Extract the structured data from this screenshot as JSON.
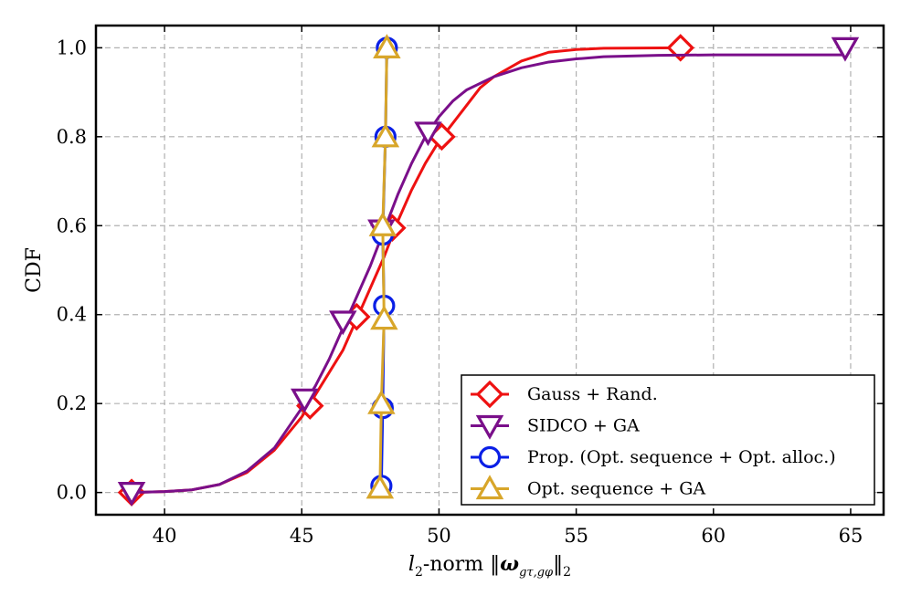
{
  "chart_data": {
    "type": "line",
    "xlabel": "l2-norm ‖ω_{gτ,gφ}‖2",
    "xlabel_parts": {
      "l": "l",
      "sub2": "2",
      "mid": "-norm ",
      "bars": "‖",
      "omega": "ω",
      "sub": "gτ,gφ",
      "tail": "2"
    },
    "ylabel": "CDF",
    "xlim": [
      37.5,
      66.2
    ],
    "ylim": [
      -0.05,
      1.05
    ],
    "x_ticks": [
      40,
      45,
      50,
      55,
      60,
      65
    ],
    "x_tick_labels": [
      "40",
      "45",
      "50",
      "55",
      "60",
      "65"
    ],
    "y_ticks": [
      0.0,
      0.2,
      0.4,
      0.6,
      0.8,
      1.0
    ],
    "y_tick_labels": [
      "0.0",
      "0.2",
      "0.4",
      "0.6",
      "0.8",
      "1.0"
    ],
    "grid": true,
    "legend_position": "lower-right",
    "series": [
      {
        "name": "Gauss + Rand.",
        "color": "#ee1111",
        "marker": "diamond",
        "curve": [
          [
            38.8,
            0.0
          ],
          [
            40,
            0.002
          ],
          [
            41,
            0.006
          ],
          [
            42,
            0.018
          ],
          [
            43,
            0.045
          ],
          [
            44,
            0.095
          ],
          [
            45,
            0.17
          ],
          [
            45.5,
            0.22
          ],
          [
            46,
            0.27
          ],
          [
            46.5,
            0.32
          ],
          [
            47,
            0.39
          ],
          [
            47.5,
            0.46
          ],
          [
            48,
            0.53
          ],
          [
            48.5,
            0.61
          ],
          [
            49,
            0.68
          ],
          [
            49.5,
            0.74
          ],
          [
            50,
            0.79
          ],
          [
            50.5,
            0.83
          ],
          [
            51,
            0.87
          ],
          [
            51.5,
            0.91
          ],
          [
            52,
            0.935
          ],
          [
            53,
            0.97
          ],
          [
            54,
            0.99
          ],
          [
            55,
            0.996
          ],
          [
            56,
            0.999
          ],
          [
            58.8,
            1.0
          ]
        ],
        "markers": [
          [
            38.8,
            0.0
          ],
          [
            45.3,
            0.195
          ],
          [
            47.0,
            0.395
          ],
          [
            48.3,
            0.595
          ],
          [
            50.1,
            0.8
          ],
          [
            58.8,
            1.0
          ]
        ]
      },
      {
        "name": "SIDCO + GA",
        "color": "#7a0f8a",
        "marker": "triangle-down",
        "curve": [
          [
            38.8,
            0.0
          ],
          [
            40,
            0.002
          ],
          [
            41,
            0.006
          ],
          [
            42,
            0.018
          ],
          [
            43,
            0.048
          ],
          [
            44,
            0.1
          ],
          [
            45,
            0.19
          ],
          [
            45.5,
            0.24
          ],
          [
            46,
            0.3
          ],
          [
            46.5,
            0.37
          ],
          [
            47,
            0.44
          ],
          [
            47.5,
            0.51
          ],
          [
            48,
            0.59
          ],
          [
            48.5,
            0.67
          ],
          [
            49,
            0.74
          ],
          [
            49.5,
            0.8
          ],
          [
            50,
            0.845
          ],
          [
            50.5,
            0.88
          ],
          [
            51,
            0.905
          ],
          [
            52,
            0.935
          ],
          [
            53,
            0.955
          ],
          [
            54,
            0.968
          ],
          [
            55,
            0.975
          ],
          [
            56,
            0.98
          ],
          [
            58,
            0.983
          ],
          [
            60,
            0.984
          ],
          [
            64.8,
            0.984
          ],
          [
            64.8,
            1.0
          ]
        ],
        "markers": [
          [
            38.8,
            0.0
          ],
          [
            45.1,
            0.21
          ],
          [
            46.5,
            0.385
          ],
          [
            47.9,
            0.59
          ],
          [
            49.6,
            0.81
          ],
          [
            64.8,
            1.0
          ]
        ]
      },
      {
        "name": "Prop. (Opt. sequence + Opt. alloc.)",
        "color": "#0a1fe6",
        "marker": "circle",
        "curve": [
          [
            47.9,
            0.015
          ],
          [
            47.95,
            0.19
          ],
          [
            48.0,
            0.42
          ],
          [
            47.95,
            0.58
          ],
          [
            48.05,
            0.8
          ],
          [
            48.1,
            1.0
          ]
        ],
        "markers": [
          [
            47.9,
            0.015
          ],
          [
            47.95,
            0.19
          ],
          [
            48.0,
            0.42
          ],
          [
            47.95,
            0.58
          ],
          [
            48.05,
            0.8
          ],
          [
            48.1,
            1.0
          ]
        ]
      },
      {
        "name": "Opt. sequence + GA",
        "color": "#d8a62a",
        "marker": "triangle-up",
        "curve": [
          [
            47.85,
            0.01
          ],
          [
            47.9,
            0.2
          ],
          [
            48.0,
            0.39
          ],
          [
            47.95,
            0.6
          ],
          [
            48.05,
            0.8
          ],
          [
            48.1,
            1.0
          ]
        ],
        "markers": [
          [
            47.85,
            0.01
          ],
          [
            47.9,
            0.2
          ],
          [
            48.0,
            0.39
          ],
          [
            47.95,
            0.6
          ],
          [
            48.05,
            0.8
          ],
          [
            48.1,
            1.0
          ]
        ]
      }
    ]
  }
}
